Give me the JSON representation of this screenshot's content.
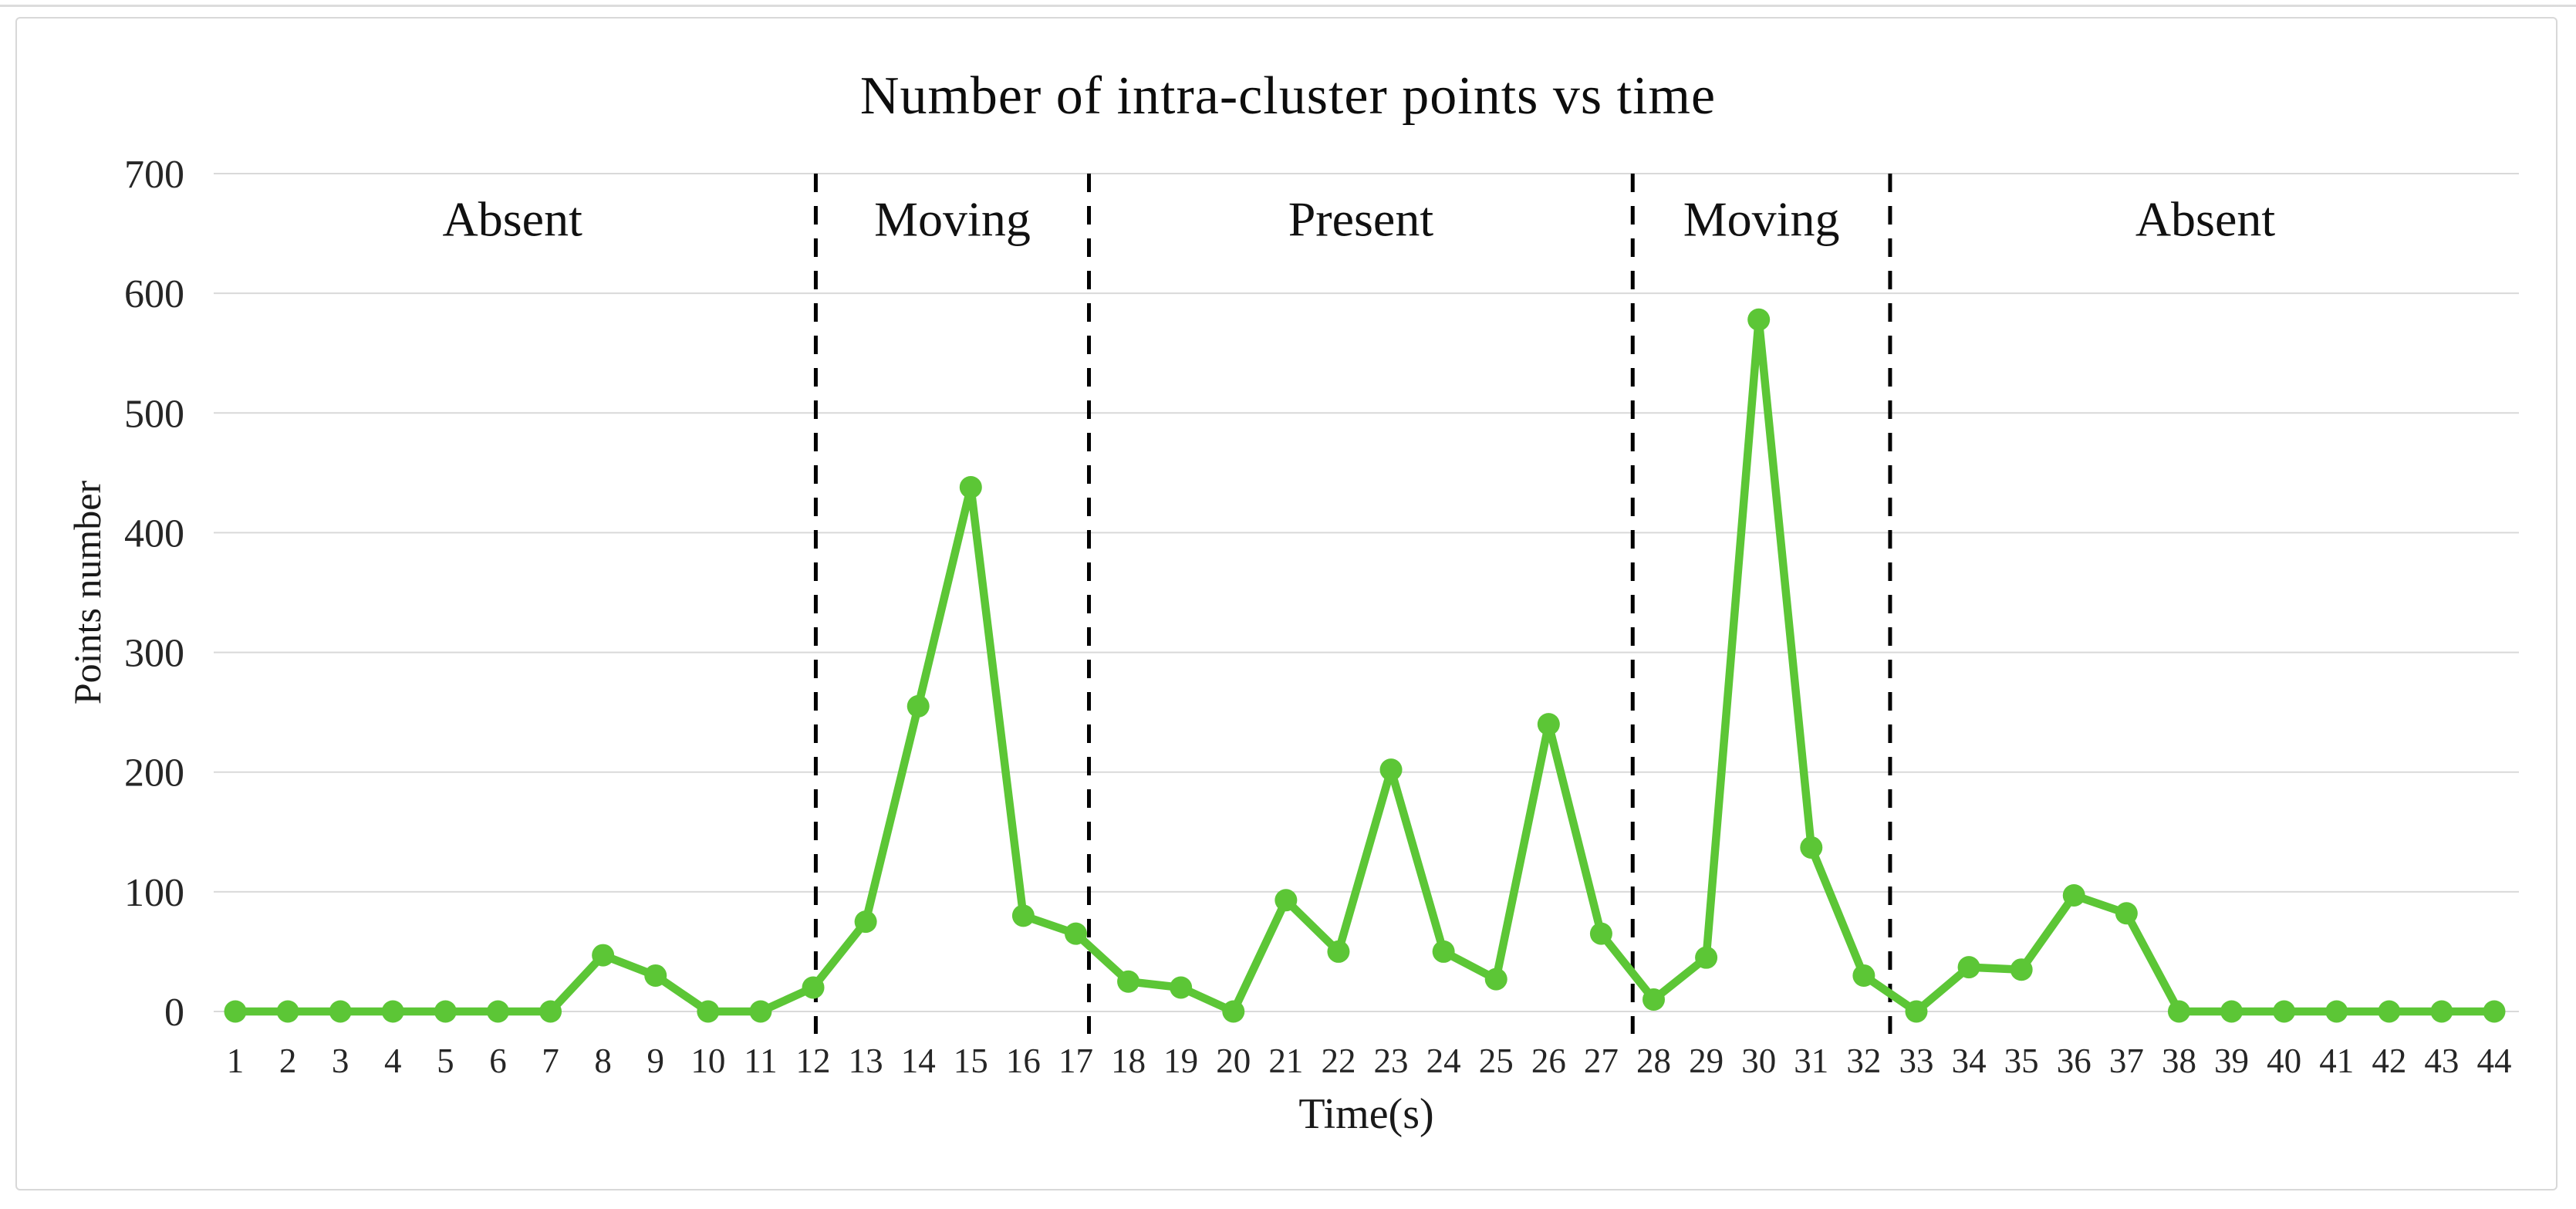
{
  "figure": {
    "title": "Number of intra-cluster points vs time"
  },
  "chart_data": {
    "type": "line",
    "title": "Number of intra-cluster points vs time",
    "xlabel": "Time(s)",
    "ylabel": "Points number",
    "x": [
      1,
      2,
      3,
      4,
      5,
      6,
      7,
      8,
      9,
      10,
      11,
      12,
      13,
      14,
      15,
      16,
      17,
      18,
      19,
      20,
      21,
      22,
      23,
      24,
      25,
      26,
      27,
      28,
      29,
      30,
      31,
      32,
      33,
      34,
      35,
      36,
      37,
      38,
      39,
      40,
      41,
      42,
      43,
      44
    ],
    "series": [
      {
        "name": "Intra-cluster points",
        "values": [
          0,
          0,
          0,
          0,
          0,
          0,
          0,
          47,
          30,
          0,
          0,
          20,
          75,
          255,
          438,
          80,
          65,
          25,
          20,
          0,
          93,
          50,
          202,
          50,
          27,
          240,
          65,
          10,
          45,
          578,
          137,
          30,
          0,
          37,
          35,
          97,
          82,
          0,
          0,
          0,
          0,
          0,
          0,
          0
        ]
      }
    ],
    "ylim": [
      0,
      700
    ],
    "yticks": [
      0,
      100,
      200,
      300,
      400,
      500,
      600,
      700
    ],
    "grid": "horizontal",
    "legend": "none",
    "line_color": "#5cc636",
    "marker": "circle",
    "marker_color": "#5cc636",
    "gridline_color": "#d9d9d9",
    "divider_color": "#000000",
    "divider_style": "dashed",
    "dividers_x": [
      12.05,
      17.25,
      27.6,
      32.5
    ],
    "regions": [
      {
        "label": "Absent",
        "from_x": 0.5,
        "to_x": 12.05
      },
      {
        "label": "Moving",
        "from_x": 12.05,
        "to_x": 17.25
      },
      {
        "label": "Present",
        "from_x": 17.25,
        "to_x": 27.6
      },
      {
        "label": "Moving",
        "from_x": 27.6,
        "to_x": 32.5
      },
      {
        "label": "Absent",
        "from_x": 32.5,
        "to_x": 44.5
      }
    ],
    "region_label_value_y": 648
  }
}
